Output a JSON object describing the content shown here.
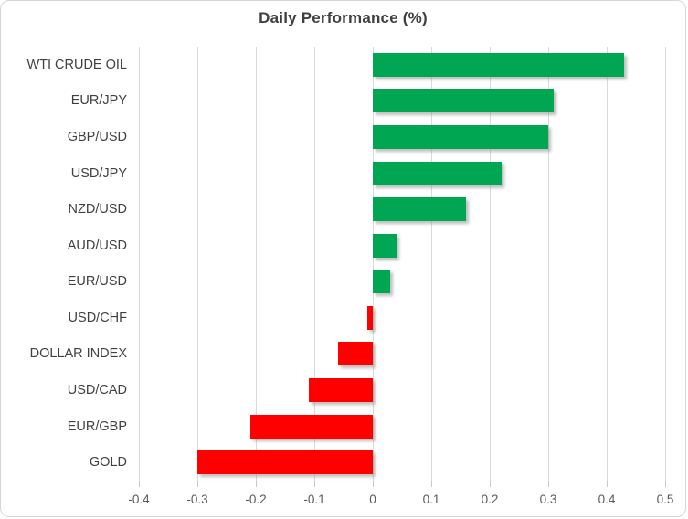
{
  "chart_data": {
    "type": "bar",
    "orientation": "horizontal",
    "title": "Daily Performance (%)",
    "categories": [
      "WTI CRUDE OIL",
      "EUR/JPY",
      "GBP/USD",
      "USD/JPY",
      "NZD/USD",
      "AUD/USD",
      "EUR/USD",
      "USD/CHF",
      "DOLLAR INDEX",
      "USD/CAD",
      "EUR/GBP",
      "GOLD"
    ],
    "values": [
      0.43,
      0.31,
      0.3,
      0.22,
      0.16,
      0.04,
      0.03,
      -0.01,
      -0.06,
      -0.11,
      -0.21,
      -0.3
    ],
    "xlabel": "",
    "ylabel": "",
    "xlim": [
      -0.4,
      0.5
    ],
    "xticks": [
      -0.4,
      -0.3,
      -0.2,
      -0.1,
      0,
      0.1,
      0.2,
      0.3,
      0.4,
      0.5
    ],
    "xtick_labels": [
      "-0.4",
      "-0.3",
      "-0.2",
      "-0.1",
      "0",
      "0.1",
      "0.2",
      "0.3",
      "0.4",
      "0.5"
    ],
    "grid": "vertical",
    "legend": "none",
    "positive_color": "#00A651",
    "negative_color": "#FF0000"
  }
}
